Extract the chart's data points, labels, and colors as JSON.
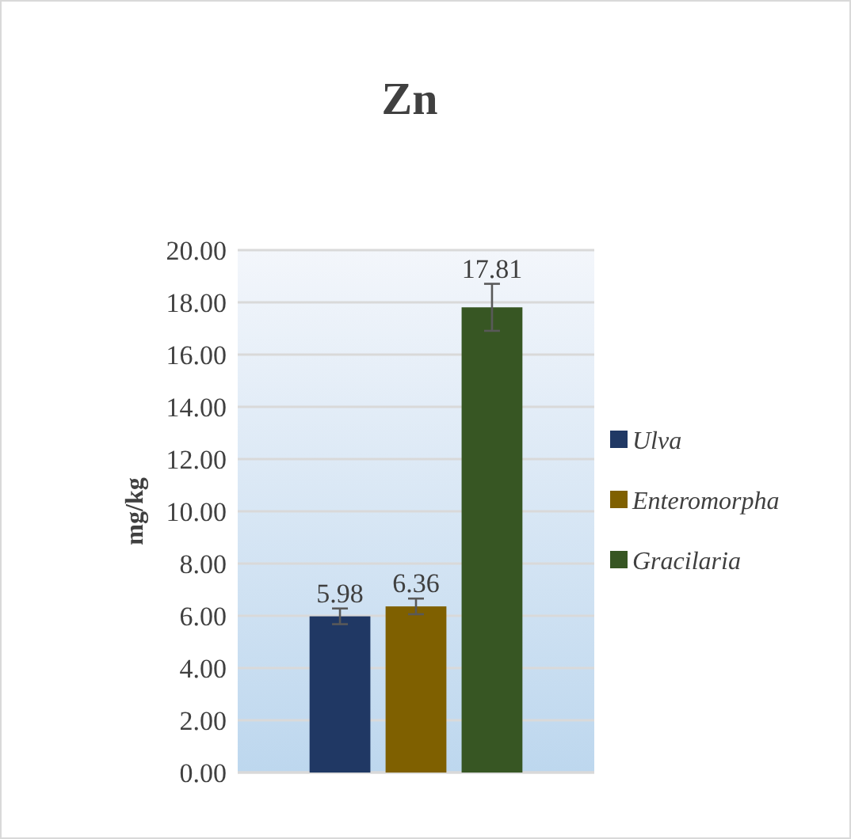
{
  "chart_data": {
    "type": "bar",
    "title": "Zn",
    "ylabel": "mg/kg",
    "categories": [
      null
    ],
    "series": [
      {
        "name": "Ulva",
        "color": "#203864",
        "values": [
          5.98
        ],
        "errors": [
          0.3
        ]
      },
      {
        "name": "Enteromorpha",
        "color": "#7f6000",
        "values": [
          6.36
        ],
        "errors": [
          0.3
        ]
      },
      {
        "name": "Gracilaria",
        "color": "#375623",
        "values": [
          17.81
        ],
        "errors": [
          0.9
        ]
      }
    ],
    "ylim": [
      0,
      20
    ],
    "yticks": [
      {
        "value": 0,
        "label": "0.00"
      },
      {
        "value": 2,
        "label": "2.00"
      },
      {
        "value": 4,
        "label": "4.00"
      },
      {
        "value": 6,
        "label": "6.00"
      },
      {
        "value": 8,
        "label": "8.00"
      },
      {
        "value": 10,
        "label": "10.00"
      },
      {
        "value": 12,
        "label": "12.00"
      },
      {
        "value": 14,
        "label": "14.00"
      },
      {
        "value": 16,
        "label": "16.00"
      },
      {
        "value": 18,
        "label": "18.00"
      },
      {
        "value": 20,
        "label": "20.00"
      }
    ],
    "grid": "y",
    "legend": "right",
    "data_labels": true
  }
}
